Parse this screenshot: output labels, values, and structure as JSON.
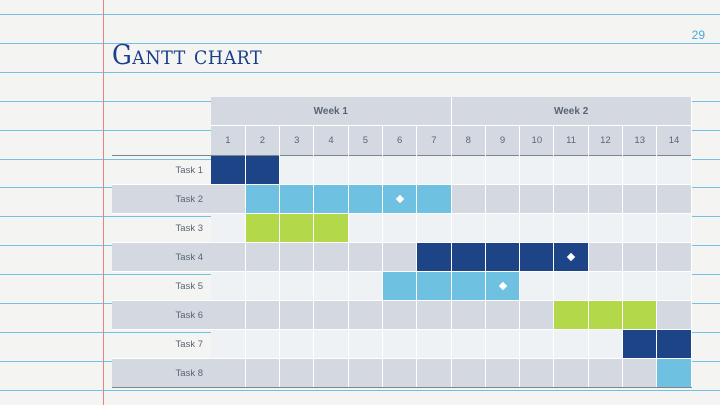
{
  "slide": {
    "title": "Gantt chart",
    "page_number": "29"
  },
  "gantt": {
    "weeks": [
      {
        "label": "Week 1",
        "span": 7
      },
      {
        "label": "Week 2",
        "span": 7
      }
    ],
    "days": [
      "1",
      "2",
      "3",
      "4",
      "5",
      "6",
      "7",
      "8",
      "9",
      "10",
      "11",
      "12",
      "13",
      "14"
    ],
    "colors": {
      "dark_blue": "#1c4486",
      "light_blue": "#6ec1e0",
      "green": "#b3d94a",
      "row_light": "#eff2f5",
      "row_dark": "#d4d9e1"
    },
    "tasks": [
      {
        "label": "Task 1",
        "start_day": 1,
        "end_day": 2,
        "color": "#1c4486",
        "milestone_day": null
      },
      {
        "label": "Task 2",
        "start_day": 2,
        "end_day": 7,
        "color": "#6ec1e0",
        "milestone_day": 6
      },
      {
        "label": "Task 3",
        "start_day": 2,
        "end_day": 4,
        "color": "#b3d94a",
        "milestone_day": null
      },
      {
        "label": "Task 4",
        "start_day": 7,
        "end_day": 11,
        "color": "#1c4486",
        "milestone_day": 11
      },
      {
        "label": "Task 5",
        "start_day": 6,
        "end_day": 9,
        "color": "#6ec1e0",
        "milestone_day": 9
      },
      {
        "label": "Task 6",
        "start_day": 11,
        "end_day": 13,
        "color": "#b3d94a",
        "milestone_day": null
      },
      {
        "label": "Task 7",
        "start_day": 13,
        "end_day": 14,
        "color": "#1c4486",
        "milestone_day": null
      },
      {
        "label": "Task 8",
        "start_day": 14,
        "end_day": 14,
        "color": "#6ec1e0",
        "milestone_day": null
      }
    ]
  }
}
